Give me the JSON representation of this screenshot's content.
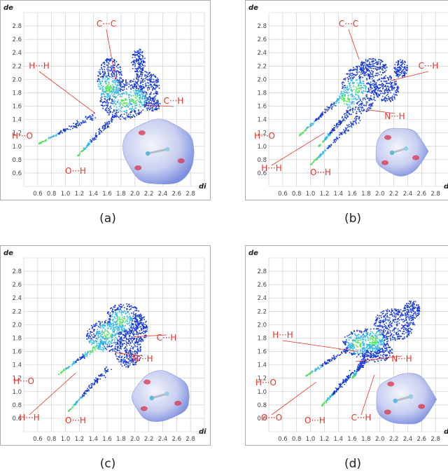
{
  "panels": [
    {
      "caption": "(a)",
      "x_axis_label": "di",
      "y_axis_label": "de",
      "x_ticks": [
        "0.6",
        "0.8",
        "1.0",
        "1.2",
        "1.4",
        "1.6",
        "1.8",
        "2.0",
        "2.2",
        "2.4",
        "2.6",
        "2.8"
      ],
      "y_ticks": [
        "0.6",
        "0.8",
        "1.0",
        "1.2",
        "1.4",
        "1.6",
        "1.8",
        "2.0",
        "2.2",
        "2.4",
        "2.6",
        "2.8"
      ],
      "contact_labels": [
        {
          "text": "C···C",
          "target": [
            1.72,
            2.0
          ]
        },
        {
          "text": "H···H",
          "target": [
            1.42,
            1.5
          ]
        },
        {
          "text": "C···H",
          "target": [
            2.12,
            1.62
          ]
        },
        {
          "text": "H···O",
          "target": null
        },
        {
          "text": "O···H",
          "target": null
        }
      ]
    },
    {
      "caption": "(b)",
      "x_axis_label": "di",
      "y_axis_label": "de",
      "x_ticks": [
        "0.6",
        "0.8",
        "1.0",
        "1.2",
        "1.4",
        "1.6",
        "1.8",
        "2.0",
        "2.2",
        "2.4",
        "2.6",
        "2.8"
      ],
      "y_ticks": [
        "0.6",
        "0.8",
        "1.0",
        "1.2",
        "1.4",
        "1.6",
        "1.8",
        "2.0",
        "2.2",
        "2.4",
        "2.6",
        "2.8"
      ],
      "contact_labels": [
        {
          "text": "C···C",
          "target": [
            1.7,
            2.3
          ]
        },
        {
          "text": "C···H",
          "target": [
            2.15,
            1.98
          ]
        },
        {
          "text": "N···H",
          "target": [
            1.8,
            1.55
          ]
        },
        {
          "text": "H···O",
          "target": null
        },
        {
          "text": "H···H",
          "target": [
            1.2,
            1.2
          ]
        },
        {
          "text": "O···H",
          "target": null
        }
      ]
    },
    {
      "caption": "(c)",
      "x_axis_label": "di",
      "y_axis_label": "de",
      "x_ticks": [
        "0.6",
        "0.8",
        "1.0",
        "1.2",
        "1.4",
        "1.6",
        "1.8",
        "2.0",
        "2.2",
        "2.4",
        "2.6",
        "2.8"
      ],
      "y_ticks": [
        "0.6",
        "0.8",
        "1.0",
        "1.2",
        "1.4",
        "1.6",
        "1.8",
        "2.0",
        "2.2",
        "2.4",
        "2.6",
        "2.8"
      ],
      "contact_labels": [
        {
          "text": "C···H",
          "target": [
            1.98,
            1.82
          ]
        },
        {
          "text": "N···H",
          "target": [
            1.72,
            1.58
          ]
        },
        {
          "text": "H···O",
          "target": null
        },
        {
          "text": "H···H",
          "target": [
            1.15,
            1.28
          ]
        },
        {
          "text": "O···H",
          "target": null
        }
      ]
    },
    {
      "caption": "(d)",
      "x_axis_label": "di",
      "y_axis_label": "de",
      "x_ticks": [
        "0.6",
        "0.8",
        "1.0",
        "1.2",
        "1.4",
        "1.6",
        "1.8",
        "2.0",
        "2.2",
        "2.4",
        "2.6",
        "2.8"
      ],
      "y_ticks": [
        "0.6",
        "0.8",
        "1.0",
        "1.2",
        "1.4",
        "1.6",
        "1.8",
        "2.0",
        "2.2",
        "2.4",
        "2.6",
        "2.8"
      ],
      "contact_labels": [
        {
          "text": "H···H",
          "target": [
            1.68,
            1.6
          ]
        },
        {
          "text": "N···H",
          "target": [
            1.65,
            1.45
          ]
        },
        {
          "text": "H···O",
          "target": null
        },
        {
          "text": "O···O",
          "target": [
            1.08,
            1.14
          ]
        },
        {
          "text": "O···H",
          "target": null
        },
        {
          "text": "C···H",
          "target": [
            1.92,
            1.25
          ]
        }
      ]
    }
  ],
  "chart_data": [
    {
      "type": "scatter",
      "title": "",
      "xlabel": "di",
      "ylabel": "de",
      "xlim": [
        0.4,
        3.0
      ],
      "ylim": [
        0.4,
        3.0
      ],
      "grid": true,
      "scatter_regions": [
        {
          "kind": "spike",
          "tip": [
            0.62,
            1.04
          ],
          "base": [
            1.42,
            1.46
          ]
        },
        {
          "kind": "spike",
          "tip": [
            1.18,
            0.86
          ],
          "base": [
            1.72,
            1.46
          ]
        },
        {
          "kind": "blob",
          "center": [
            1.84,
            1.7
          ],
          "radii": [
            0.34,
            0.3
          ]
        },
        {
          "kind": "blob",
          "center": [
            1.64,
            2.02
          ],
          "radii": [
            0.18,
            0.3
          ]
        },
        {
          "kind": "blob",
          "center": [
            2.16,
            1.9
          ],
          "radii": [
            0.2,
            0.22
          ]
        },
        {
          "kind": "blob",
          "center": [
            2.05,
            2.26
          ],
          "radii": [
            0.1,
            0.2
          ]
        },
        {
          "kind": "blob",
          "center": [
            2.25,
            1.62
          ],
          "radii": [
            0.12,
            0.1
          ]
        }
      ],
      "hot_spots": [
        [
          1.84,
          1.66
        ],
        [
          1.62,
          1.88
        ],
        [
          2.0,
          1.7
        ]
      ]
    },
    {
      "type": "scatter",
      "title": "",
      "xlabel": "di",
      "ylabel": "de",
      "xlim": [
        0.4,
        3.0
      ],
      "ylim": [
        0.4,
        3.0
      ],
      "grid": true,
      "scatter_regions": [
        {
          "kind": "spike",
          "tip": [
            0.84,
            1.16
          ],
          "base": [
            1.5,
            1.8
          ]
        },
        {
          "kind": "spike",
          "tip": [
            1.0,
            0.72
          ],
          "base": [
            1.7,
            1.44
          ]
        },
        {
          "kind": "spike",
          "tip": [
            1.12,
            1.0
          ],
          "base": [
            1.58,
            1.54
          ]
        },
        {
          "kind": "blob",
          "center": [
            1.7,
            1.84
          ],
          "radii": [
            0.26,
            0.36
          ]
        },
        {
          "kind": "blob",
          "center": [
            1.9,
            2.18
          ],
          "radii": [
            0.2,
            0.14
          ]
        },
        {
          "kind": "blob",
          "center": [
            2.1,
            1.86
          ],
          "radii": [
            0.18,
            0.2
          ]
        },
        {
          "kind": "blob",
          "center": [
            2.3,
            2.16
          ],
          "radii": [
            0.1,
            0.14
          ]
        }
      ],
      "hot_spots": [
        [
          1.66,
          1.86
        ],
        [
          1.5,
          1.7
        ]
      ]
    },
    {
      "type": "scatter",
      "title": "",
      "xlabel": "di",
      "ylabel": "de",
      "xlim": [
        0.4,
        3.0
      ],
      "ylim": [
        0.4,
        3.0
      ],
      "grid": true,
      "scatter_regions": [
        {
          "kind": "spike",
          "tip": [
            0.9,
            1.26
          ],
          "base": [
            1.6,
            1.78
          ]
        },
        {
          "kind": "spike",
          "tip": [
            1.04,
            0.7
          ],
          "base": [
            1.62,
            1.36
          ]
        },
        {
          "kind": "blob",
          "center": [
            1.6,
            1.84
          ],
          "radii": [
            0.3,
            0.24
          ]
        },
        {
          "kind": "blob",
          "center": [
            1.84,
            2.08
          ],
          "radii": [
            0.26,
            0.24
          ]
        },
        {
          "kind": "blob",
          "center": [
            1.9,
            1.6
          ],
          "radii": [
            0.2,
            0.24
          ]
        },
        {
          "kind": "blob",
          "center": [
            2.06,
            1.94
          ],
          "radii": [
            0.12,
            0.22
          ]
        }
      ],
      "hot_spots": [
        [
          1.6,
          1.86
        ],
        [
          1.4,
          1.62
        ],
        [
          1.8,
          2.06
        ]
      ]
    },
    {
      "type": "scatter",
      "title": "",
      "xlabel": "di",
      "ylabel": "de",
      "xlim": [
        0.4,
        3.0
      ],
      "ylim": [
        0.4,
        3.0
      ],
      "grid": true,
      "scatter_regions": [
        {
          "kind": "spike",
          "tip": [
            0.92,
            1.22
          ],
          "base": [
            1.62,
            1.7
          ]
        },
        {
          "kind": "spike",
          "tip": [
            1.16,
            0.78
          ],
          "base": [
            1.62,
            1.3
          ]
        },
        {
          "kind": "spike",
          "tip": [
            1.6,
            1.2
          ],
          "base": [
            1.8,
            1.5
          ]
        },
        {
          "kind": "blob",
          "center": [
            1.8,
            1.72
          ],
          "radii": [
            0.34,
            0.22
          ]
        },
        {
          "kind": "blob",
          "center": [
            2.2,
            2.0
          ],
          "radii": [
            0.3,
            0.24
          ]
        },
        {
          "kind": "blob",
          "center": [
            2.46,
            2.22
          ],
          "radii": [
            0.12,
            0.14
          ]
        },
        {
          "kind": "blob",
          "center": [
            1.96,
            1.6
          ],
          "radii": [
            0.22,
            0.16
          ]
        }
      ],
      "hot_spots": [
        [
          1.68,
          1.72
        ],
        [
          1.9,
          1.76
        ]
      ]
    }
  ],
  "colors": {
    "label_red": "#e8312a",
    "grid": "#c9c9c9",
    "frame": "#9a9a9a",
    "point_blue": "#1538d8",
    "point_cyan": "#2fb8e6",
    "point_green": "#4fe35a",
    "surface_blue": "#7d8fe0",
    "surface_red": "#d8344a"
  }
}
